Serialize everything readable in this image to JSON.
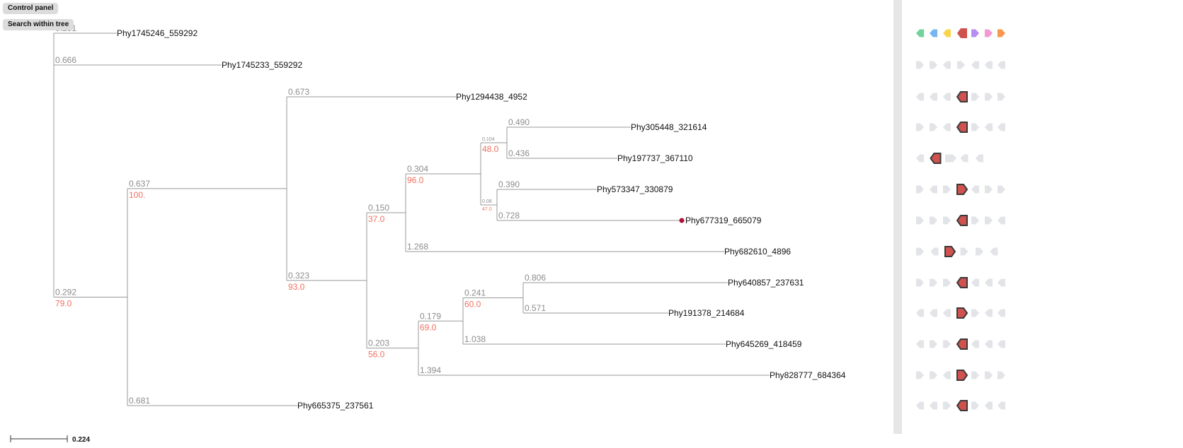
{
  "controls": {
    "control_panel_label": "Control panel",
    "search_label": "Search within tree"
  },
  "colors": {
    "branch": "#999999",
    "branch_length_text": "#8c8c8c",
    "support_text": "#f07060",
    "highlight_node": "#b0103a",
    "gene_grey": "#e3e4e8",
    "gene_focus": "#d0524e",
    "gene_focus_border": "#3a3a3a"
  },
  "tree": {
    "leaves": [
      {
        "id": "l0",
        "label": "Phy1745246_559292"
      },
      {
        "id": "l1",
        "label": "Phy1745233_559292"
      },
      {
        "id": "l2",
        "label": "Phy1294438_4952"
      },
      {
        "id": "l3",
        "label": "Phy305448_321614"
      },
      {
        "id": "l4",
        "label": "Phy197737_367110"
      },
      {
        "id": "l5",
        "label": "Phy573347_330879"
      },
      {
        "id": "l6",
        "label": "Phy677319_665079",
        "highlighted": true
      },
      {
        "id": "l7",
        "label": "Phy682610_4896"
      },
      {
        "id": "l8",
        "label": "Phy640857_237631"
      },
      {
        "id": "l9",
        "label": "Phy191378_214684"
      },
      {
        "id": "l10",
        "label": "Phy645269_418459"
      },
      {
        "id": "l11",
        "label": "Phy828777_684364"
      },
      {
        "id": "l12",
        "label": "Phy665375_237561"
      }
    ],
    "branch_labels": {
      "l0": {
        "length": "0.251"
      },
      "l1": {
        "length": "0.666"
      },
      "l2": {
        "length": "0.673"
      },
      "l3": {
        "length": "0.490"
      },
      "l4": {
        "length": "0.436"
      },
      "l5": {
        "length": "0.390"
      },
      "l6": {
        "length": "0.728"
      },
      "l7": {
        "length": "1.268"
      },
      "l8": {
        "length": "0.806"
      },
      "l9": {
        "length": "0.571"
      },
      "l10": {
        "length": "1.038"
      },
      "l11": {
        "length": "1.394"
      },
      "l12": {
        "length": "0.681"
      },
      "n1": {
        "length": "0.292",
        "support": "79.0"
      },
      "n2": {
        "length": "0.637",
        "support": "100."
      },
      "n3": {
        "length": "0.323",
        "support": "93.0"
      },
      "n4": {
        "length": "0.150",
        "support": "37.0"
      },
      "n5": {
        "length": "0.304",
        "support": "96.0"
      },
      "n6": {
        "length": "0.104",
        "support": "48.0"
      },
      "n7": {
        "length": "0.08",
        "support": "47.0"
      },
      "n8": {
        "length": "0.203",
        "support": "56.0"
      },
      "n9": {
        "length": "0.179",
        "support": "69.0"
      },
      "n10": {
        "length": "0.241",
        "support": "60.0"
      }
    },
    "scale_label": "0.224"
  },
  "gene_rows": [
    [
      {
        "t": "g",
        "d": "l",
        "c": "#6fd39a"
      },
      {
        "t": "g",
        "d": "l",
        "c": "#78b4f0"
      },
      {
        "t": "g",
        "d": "l",
        "c": "#f7d54f"
      },
      {
        "t": "f",
        "d": "l",
        "c": "#d0524e"
      },
      {
        "t": "g",
        "d": "r",
        "c": "#b48cf2"
      },
      {
        "t": "g",
        "d": "r",
        "c": "#f49ad2"
      },
      {
        "t": "g",
        "d": "r",
        "c": "#f7994a"
      }
    ],
    [
      {
        "t": "g",
        "d": "r"
      },
      {
        "t": "g",
        "d": "r"
      },
      {
        "t": "g",
        "d": "l"
      },
      {
        "t": "g",
        "d": "r"
      },
      {
        "t": "g",
        "d": "l"
      },
      {
        "t": "g",
        "d": "l"
      },
      {
        "t": "g",
        "d": "l"
      }
    ],
    [
      {
        "t": "g",
        "d": "l"
      },
      {
        "t": "g",
        "d": "l"
      },
      {
        "t": "g",
        "d": "l"
      },
      {
        "t": "f",
        "d": "l"
      },
      {
        "t": "g",
        "d": "r"
      },
      {
        "t": "g",
        "d": "r"
      },
      {
        "t": "g",
        "d": "r"
      }
    ],
    [
      {
        "t": "g",
        "d": "r"
      },
      {
        "t": "g",
        "d": "r"
      },
      {
        "t": "g",
        "d": "l"
      },
      {
        "t": "f",
        "d": "l"
      },
      {
        "t": "g",
        "d": "r"
      },
      {
        "t": "g",
        "d": "l"
      },
      {
        "t": "g",
        "d": "l"
      }
    ],
    [
      {
        "t": "g",
        "d": "l"
      },
      {
        "t": "f",
        "d": "l"
      },
      {
        "t": "g",
        "d": "r"
      },
      {
        "t": "g",
        "d": "l"
      },
      {
        "t": "g",
        "d": "l"
      }
    ],
    [
      {
        "t": "g",
        "d": "r"
      },
      {
        "t": "g",
        "d": "l"
      },
      {
        "t": "g",
        "d": "r"
      },
      {
        "t": "f",
        "d": "r"
      },
      {
        "t": "g",
        "d": "l"
      },
      {
        "t": "g",
        "d": "r"
      },
      {
        "t": "g",
        "d": "r"
      }
    ],
    [
      {
        "t": "g",
        "d": "r"
      },
      {
        "t": "g",
        "d": "r"
      },
      {
        "t": "g",
        "d": "r"
      },
      {
        "t": "f",
        "d": "l"
      },
      {
        "t": "g",
        "d": "r"
      },
      {
        "t": "g",
        "d": "r"
      },
      {
        "t": "g",
        "d": "l"
      }
    ],
    [
      {
        "t": "g",
        "d": "r"
      },
      {
        "t": "g",
        "d": "l"
      },
      {
        "t": "f",
        "d": "r"
      },
      {
        "t": "g",
        "d": "r"
      },
      {
        "t": "g",
        "d": "r"
      },
      {
        "t": "g",
        "d": "l"
      }
    ],
    [
      {
        "t": "g",
        "d": "r"
      },
      {
        "t": "g",
        "d": "r"
      },
      {
        "t": "g",
        "d": "r"
      },
      {
        "t": "f",
        "d": "l"
      },
      {
        "t": "g",
        "d": "l"
      },
      {
        "t": "g",
        "d": "l"
      },
      {
        "t": "g",
        "d": "l"
      }
    ],
    [
      {
        "t": "g",
        "d": "l"
      },
      {
        "t": "g",
        "d": "l"
      },
      {
        "t": "g",
        "d": "l"
      },
      {
        "t": "f",
        "d": "r"
      },
      {
        "t": "g",
        "d": "r"
      },
      {
        "t": "g",
        "d": "l"
      },
      {
        "t": "g",
        "d": "l"
      }
    ],
    [
      {
        "t": "g",
        "d": "l"
      },
      {
        "t": "g",
        "d": "r"
      },
      {
        "t": "g",
        "d": "r"
      },
      {
        "t": "f",
        "d": "l"
      },
      {
        "t": "g",
        "d": "l"
      },
      {
        "t": "g",
        "d": "l"
      },
      {
        "t": "g",
        "d": "l"
      }
    ],
    [
      {
        "t": "g",
        "d": "r"
      },
      {
        "t": "g",
        "d": "r"
      },
      {
        "t": "g",
        "d": "l"
      },
      {
        "t": "f",
        "d": "r"
      },
      {
        "t": "g",
        "d": "r"
      },
      {
        "t": "g",
        "d": "r"
      },
      {
        "t": "g",
        "d": "r"
      }
    ],
    [
      {
        "t": "g",
        "d": "l"
      },
      {
        "t": "g",
        "d": "l"
      },
      {
        "t": "g",
        "d": "r"
      },
      {
        "t": "f",
        "d": "l"
      },
      {
        "t": "g",
        "d": "r"
      },
      {
        "t": "g",
        "d": "l"
      },
      {
        "t": "g",
        "d": "l"
      }
    ]
  ]
}
